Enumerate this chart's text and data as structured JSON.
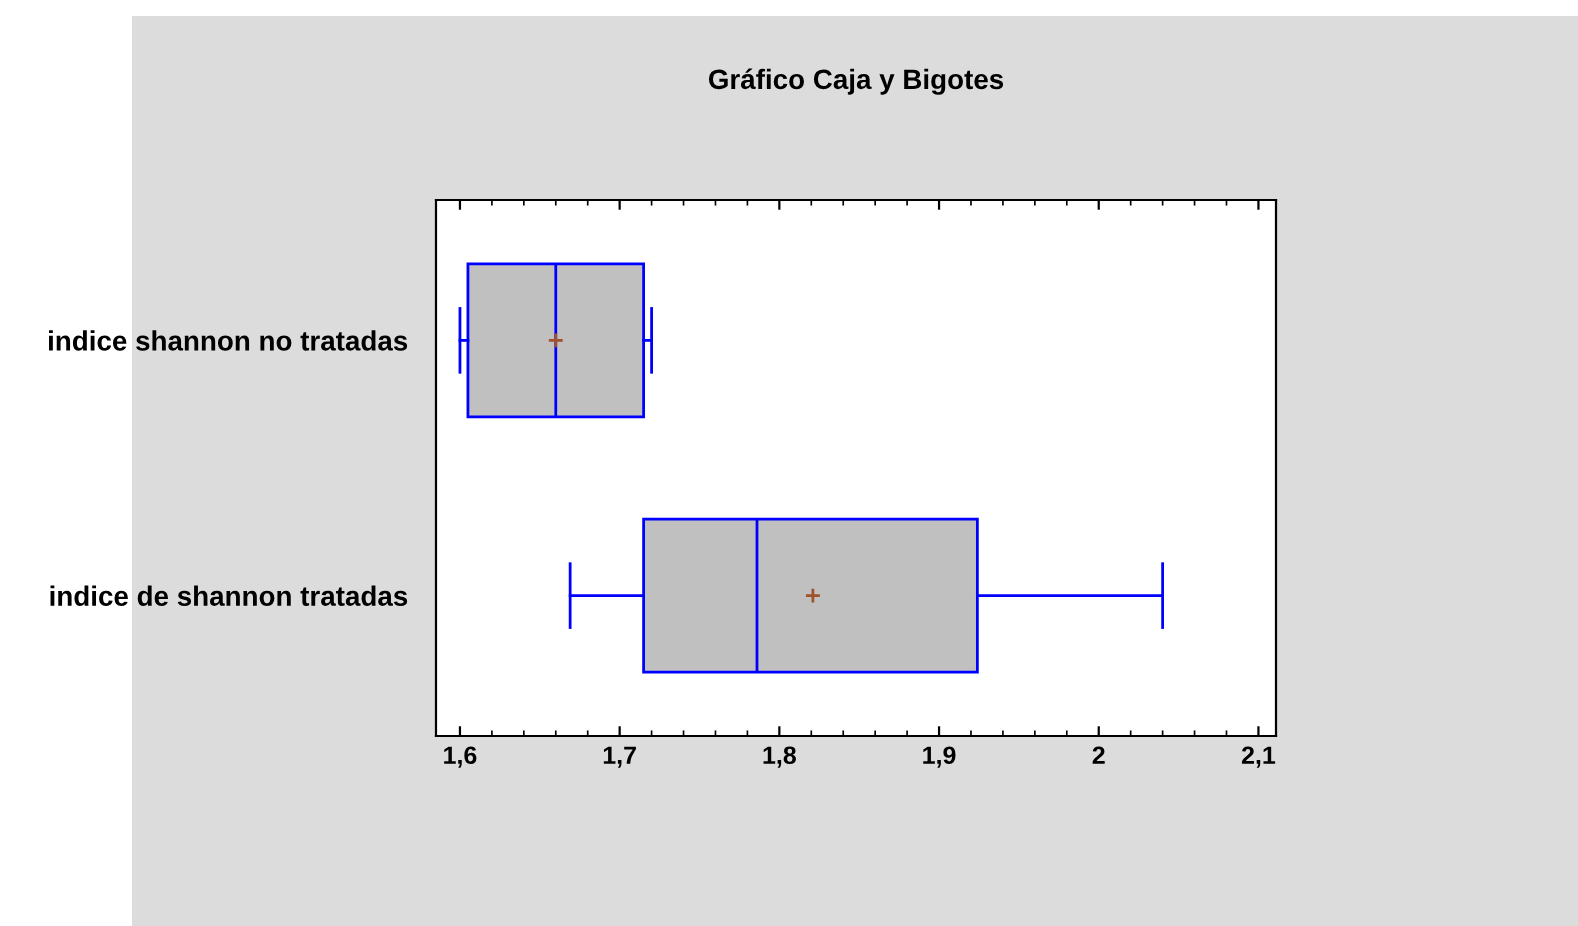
{
  "chart_data": {
    "type": "box",
    "orientation": "horizontal",
    "title": "Gráfico Caja y Bigotes",
    "categories": [
      "indice shannon no tratadas",
      "indice de shannon tratadas"
    ],
    "boxes": [
      {
        "low": 1.6,
        "q1": 1.605,
        "median": 1.66,
        "q3": 1.715,
        "high": 1.72,
        "mean": 1.66
      },
      {
        "low": 1.669,
        "q1": 1.715,
        "median": 1.786,
        "q3": 1.924,
        "high": 2.04,
        "mean": 1.821
      }
    ],
    "color": "#0000ff",
    "xlim": [
      1.585,
      2.111
    ],
    "xticks": [
      {
        "value": 1.6,
        "label": "1,6"
      },
      {
        "value": 1.7,
        "label": "1,7"
      },
      {
        "value": 1.8,
        "label": "1,8"
      },
      {
        "value": 1.9,
        "label": "1,9"
      },
      {
        "value": 2.0,
        "label": "2"
      },
      {
        "value": 2.1,
        "label": "2,1"
      }
    ],
    "grid": false,
    "legend": false
  }
}
